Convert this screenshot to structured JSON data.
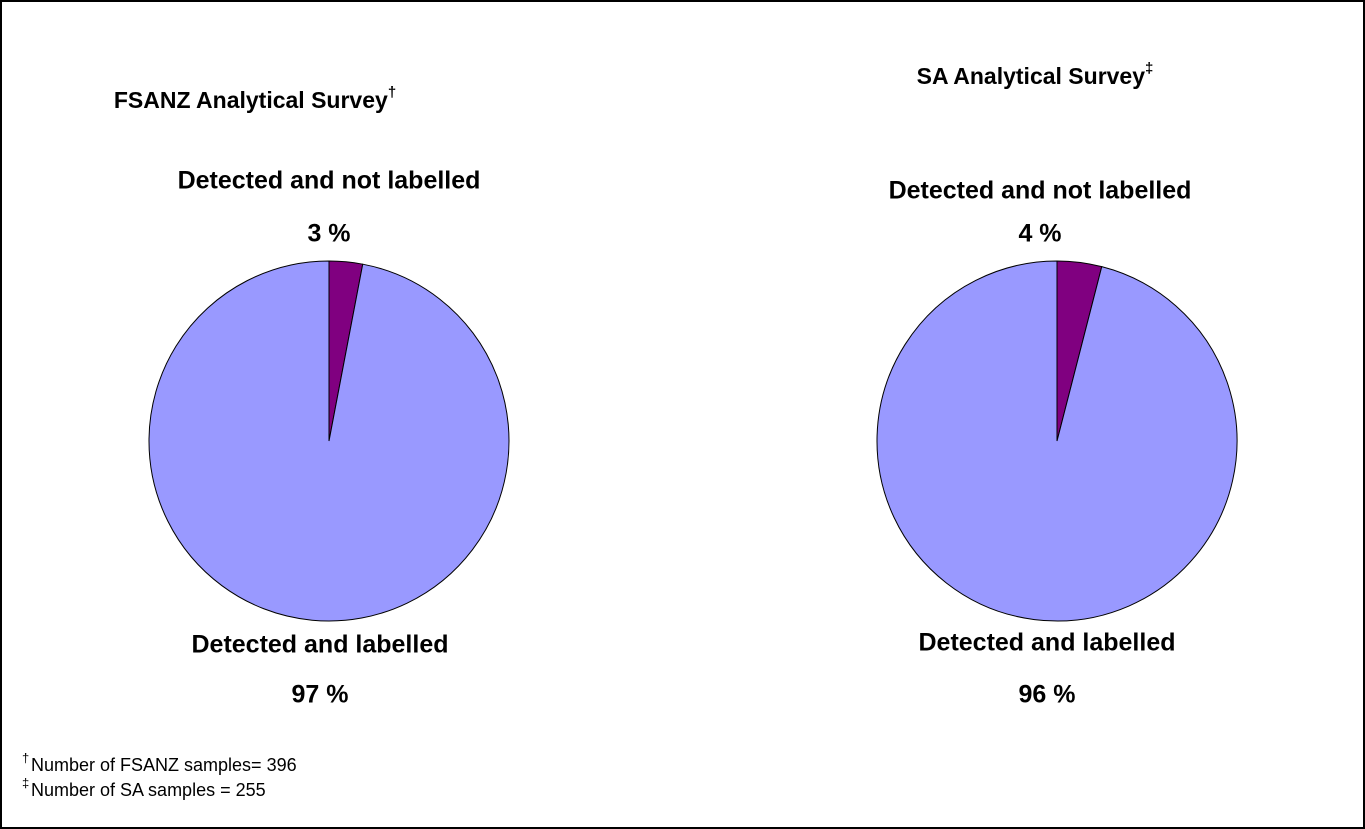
{
  "chart_data": [
    {
      "type": "pie",
      "title": "FSANZ Analytical Survey",
      "title_mark": "†",
      "categories": [
        "Detected and not labelled",
        "Detected and labelled"
      ],
      "values": [
        3,
        97
      ],
      "value_labels": [
        "3 %",
        "97 %"
      ],
      "colors": [
        "#800080",
        "#9999ff"
      ]
    },
    {
      "type": "pie",
      "title": "SA Analytical Survey",
      "title_mark": "‡",
      "categories": [
        "Detected and not labelled",
        "Detected and labelled"
      ],
      "values": [
        4,
        96
      ],
      "value_labels": [
        "4 %",
        "96 %"
      ],
      "colors": [
        "#800080",
        "#9999ff"
      ]
    }
  ],
  "footnotes": [
    {
      "mark": "†",
      "text": "Number of FSANZ samples= 396"
    },
    {
      "mark": "‡",
      "text": "Number of SA samples = 255"
    }
  ]
}
